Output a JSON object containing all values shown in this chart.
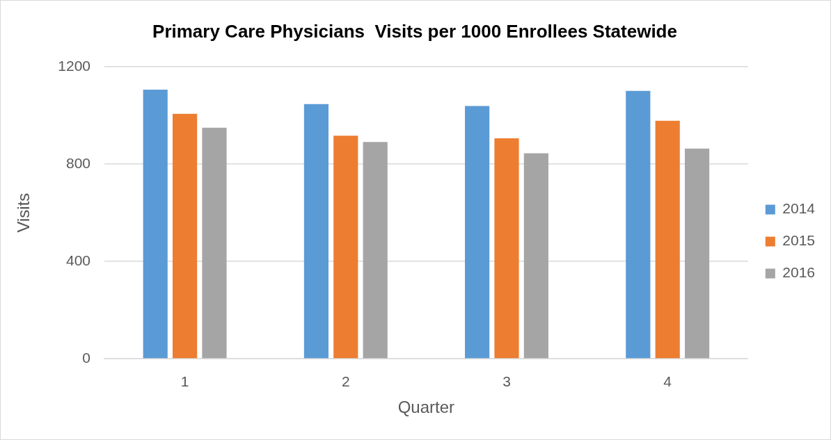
{
  "chart_data": {
    "type": "bar",
    "title": "Primary Care Physicians  Visits per 1000 Enrollees Statewide",
    "xlabel": "Quarter",
    "ylabel": "Visits",
    "categories": [
      "1",
      "2",
      "3",
      "4"
    ],
    "series": [
      {
        "name": "2014",
        "color": "#5b9bd5",
        "values": [
          1106,
          1047,
          1039,
          1101
        ]
      },
      {
        "name": "2015",
        "color": "#ed7d31",
        "values": [
          1007,
          917,
          906,
          978
        ]
      },
      {
        "name": "2016",
        "color": "#a5a5a5",
        "values": [
          950,
          891,
          845,
          864
        ]
      }
    ],
    "ylim": [
      0,
      1200
    ],
    "yticks": [
      0,
      400,
      800,
      1200
    ],
    "grid": "y",
    "legend": "right"
  }
}
